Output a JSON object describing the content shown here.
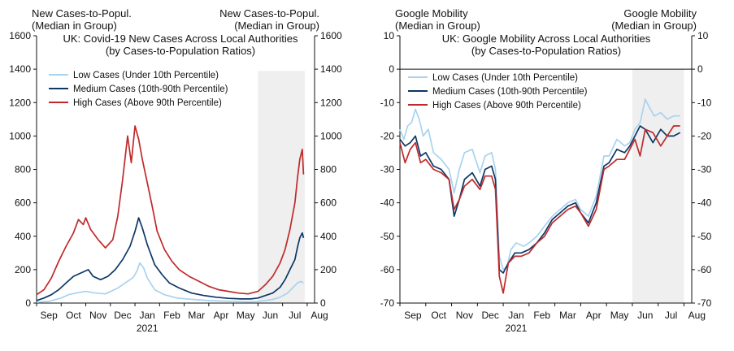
{
  "chart_data": [
    {
      "type": "line",
      "title": "UK: Covid-19 New Cases Across Local Authorities",
      "subtitle": "(by Cases-to-Population Ratios)",
      "left_axis_label": [
        "New Cases-to-Popul.",
        "(Median in Group)"
      ],
      "right_axis_label": [
        "New Cases-to-Popul.",
        "(Median in Group)"
      ],
      "ylim": [
        0,
        1600
      ],
      "yticks": [
        "0",
        "200",
        "400",
        "600",
        "800",
        "1000",
        "1200",
        "1400",
        "1600"
      ],
      "xlim": [
        0,
        11.3
      ],
      "xticks": [
        "Sep",
        "Oct",
        "Nov",
        "Dec",
        "Jan",
        "Feb",
        "Mar",
        "Apr",
        "May",
        "Jun",
        "Jul",
        "Aug"
      ],
      "year_label": "2021",
      "year_label_month": 4,
      "shaded_region": [
        9.0,
        10.9
      ],
      "shaded_top": 1390,
      "series": [
        {
          "name": "Low Cases (Under 10th Percentile)",
          "color": "#a8d3ee",
          "x": [
            0.0,
            0.5,
            1.0,
            1.3,
            1.6,
            2.0,
            2.4,
            2.8,
            3.3,
            3.6,
            3.9,
            4.0,
            4.1,
            4.2,
            4.35,
            4.5,
            4.8,
            5.2,
            5.7,
            6.5,
            7.0,
            7.5,
            8.0,
            8.5,
            8.8,
            9.0,
            9.3,
            9.6,
            9.9,
            10.2,
            10.4,
            10.6,
            10.75,
            10.85
          ],
          "y": [
            5,
            10,
            30,
            50,
            60,
            70,
            60,
            55,
            90,
            120,
            150,
            170,
            200,
            240,
            210,
            150,
            80,
            50,
            30,
            20,
            15,
            12,
            10,
            8,
            8,
            10,
            15,
            22,
            35,
            60,
            90,
            120,
            130,
            120
          ]
        },
        {
          "name": "Medium Cases (10th-90th Percentile)",
          "color": "#0d3766",
          "x": [
            0.0,
            0.3,
            0.6,
            0.9,
            1.2,
            1.5,
            1.8,
            2.1,
            2.3,
            2.6,
            2.9,
            3.2,
            3.5,
            3.8,
            4.0,
            4.15,
            4.3,
            4.5,
            4.8,
            5.1,
            5.4,
            5.8,
            6.3,
            6.8,
            7.3,
            7.8,
            8.3,
            8.7,
            9.0,
            9.3,
            9.6,
            9.9,
            10.1,
            10.3,
            10.5,
            10.6,
            10.7,
            10.8,
            10.85
          ],
          "y": [
            15,
            30,
            50,
            80,
            120,
            160,
            180,
            200,
            160,
            140,
            160,
            200,
            260,
            340,
            430,
            510,
            450,
            350,
            230,
            170,
            120,
            90,
            60,
            45,
            35,
            28,
            25,
            25,
            30,
            45,
            60,
            95,
            140,
            200,
            260,
            330,
            390,
            420,
            390
          ]
        },
        {
          "name": "High Cases (Above 90th Percentile)",
          "color": "#c0292b",
          "x": [
            0.0,
            0.3,
            0.6,
            0.9,
            1.2,
            1.5,
            1.7,
            1.9,
            2.0,
            2.2,
            2.5,
            2.8,
            3.1,
            3.3,
            3.5,
            3.7,
            3.85,
            4.0,
            4.15,
            4.3,
            4.5,
            4.7,
            4.9,
            5.2,
            5.5,
            5.8,
            6.2,
            6.6,
            7.0,
            7.4,
            7.8,
            8.2,
            8.6,
            9.0,
            9.3,
            9.6,
            9.9,
            10.1,
            10.3,
            10.5,
            10.6,
            10.7,
            10.8,
            10.85
          ],
          "y": [
            50,
            80,
            150,
            250,
            340,
            420,
            500,
            470,
            510,
            440,
            380,
            330,
            380,
            520,
            740,
            1000,
            840,
            1060,
            980,
            860,
            720,
            580,
            430,
            320,
            250,
            200,
            160,
            130,
            100,
            80,
            70,
            60,
            55,
            70,
            110,
            160,
            240,
            320,
            440,
            600,
            740,
            860,
            920,
            770
          ]
        }
      ]
    },
    {
      "type": "line",
      "title": "UK: Google Mobility Across Local Authorities",
      "subtitle": "(by Cases-to-Population Ratios)",
      "left_axis_label": [
        "Google Mobility",
        "(Median in Group)"
      ],
      "right_axis_label": [
        "Google Mobility",
        "(Median in Group)"
      ],
      "ylim": [
        -70,
        10
      ],
      "yticks": [
        "-70",
        "-60",
        "-50",
        "-40",
        "-30",
        "-20",
        "-10",
        "0",
        "10"
      ],
      "xlim": [
        0,
        11.3
      ],
      "xticks": [
        "Sep",
        "Oct",
        "Nov",
        "Dec",
        "Jan",
        "Feb",
        "Mar",
        "Apr",
        "May",
        "Jun",
        "Jul",
        "Aug"
      ],
      "year_label": "2021",
      "year_label_month": 4,
      "shaded_region": [
        9.0,
        11.0
      ],
      "shaded_top": 0,
      "zero_line": 0,
      "series": [
        {
          "name": "Low Cases (Under 10th Percentile)",
          "color": "#a8d3ee",
          "x": [
            0.0,
            0.15,
            0.3,
            0.45,
            0.6,
            0.75,
            0.9,
            1.1,
            1.3,
            1.6,
            1.9,
            2.1,
            2.3,
            2.5,
            2.8,
            3.1,
            3.3,
            3.55,
            3.7,
            3.85,
            4.0,
            4.15,
            4.3,
            4.5,
            4.8,
            5.0,
            5.3,
            5.6,
            5.9,
            6.2,
            6.5,
            6.8,
            7.0,
            7.3,
            7.6,
            7.9,
            8.1,
            8.4,
            8.7,
            8.9,
            9.1,
            9.3,
            9.5,
            9.7,
            9.85,
            10.1,
            10.35,
            10.6,
            10.85
          ],
          "y": [
            -18,
            -21,
            -17,
            -16,
            -12,
            -15,
            -20,
            -18,
            -25,
            -27,
            -30,
            -37,
            -30,
            -25,
            -24,
            -31,
            -26,
            -25,
            -30,
            -56,
            -60,
            -59,
            -54,
            -52,
            -53,
            -52,
            -50,
            -47,
            -44,
            -42,
            -40,
            -39,
            -42,
            -44,
            -38,
            -26,
            -26,
            -21,
            -23,
            -22,
            -18,
            -16,
            -9,
            -12,
            -14,
            -13,
            -15,
            -14,
            -14
          ]
        },
        {
          "name": "Medium Cases (10th-90th Percentile)",
          "color": "#0d3766",
          "x": [
            0.0,
            0.2,
            0.4,
            0.6,
            0.8,
            1.0,
            1.3,
            1.6,
            1.9,
            2.1,
            2.3,
            2.5,
            2.8,
            3.1,
            3.3,
            3.55,
            3.7,
            3.85,
            4.0,
            4.2,
            4.45,
            4.7,
            5.0,
            5.3,
            5.6,
            5.9,
            6.2,
            6.5,
            6.8,
            7.0,
            7.3,
            7.6,
            7.9,
            8.1,
            8.4,
            8.7,
            8.9,
            9.1,
            9.3,
            9.5,
            9.8,
            10.1,
            10.35,
            10.6,
            10.85
          ],
          "y": [
            -21,
            -23,
            -22,
            -20,
            -26,
            -25,
            -29,
            -30,
            -33,
            -44,
            -39,
            -33,
            -31,
            -35,
            -30,
            -29,
            -33,
            -60,
            -61,
            -58,
            -55,
            -55,
            -54,
            -52,
            -49,
            -45,
            -43,
            -41,
            -40,
            -43,
            -46,
            -40,
            -29,
            -28,
            -24,
            -25,
            -23,
            -20,
            -17,
            -18,
            -22,
            -18,
            -20,
            -20,
            -19
          ]
        },
        {
          "name": "High Cases (Above 90th Percentile)",
          "color": "#c0292b",
          "x": [
            0.0,
            0.2,
            0.4,
            0.6,
            0.8,
            1.0,
            1.3,
            1.6,
            1.9,
            2.1,
            2.3,
            2.5,
            2.8,
            3.1,
            3.3,
            3.55,
            3.7,
            3.85,
            4.0,
            4.2,
            4.45,
            4.7,
            5.0,
            5.3,
            5.6,
            5.9,
            6.2,
            6.5,
            6.8,
            7.0,
            7.3,
            7.6,
            7.9,
            8.1,
            8.4,
            8.7,
            8.9,
            9.1,
            9.3,
            9.5,
            9.8,
            10.1,
            10.35,
            10.6,
            10.85
          ],
          "y": [
            -22,
            -28,
            -24,
            -22,
            -28,
            -27,
            -30,
            -31,
            -33,
            -42,
            -39,
            -35,
            -33,
            -36,
            -32,
            -32,
            -36,
            -62,
            -67,
            -58,
            -56,
            -56,
            -55,
            -52,
            -50,
            -46,
            -44,
            -42,
            -41,
            -43,
            -47,
            -42,
            -30,
            -29,
            -27,
            -27,
            -24,
            -21,
            -26,
            -18,
            -19,
            -23,
            -20,
            -17,
            -17
          ]
        }
      ]
    }
  ]
}
